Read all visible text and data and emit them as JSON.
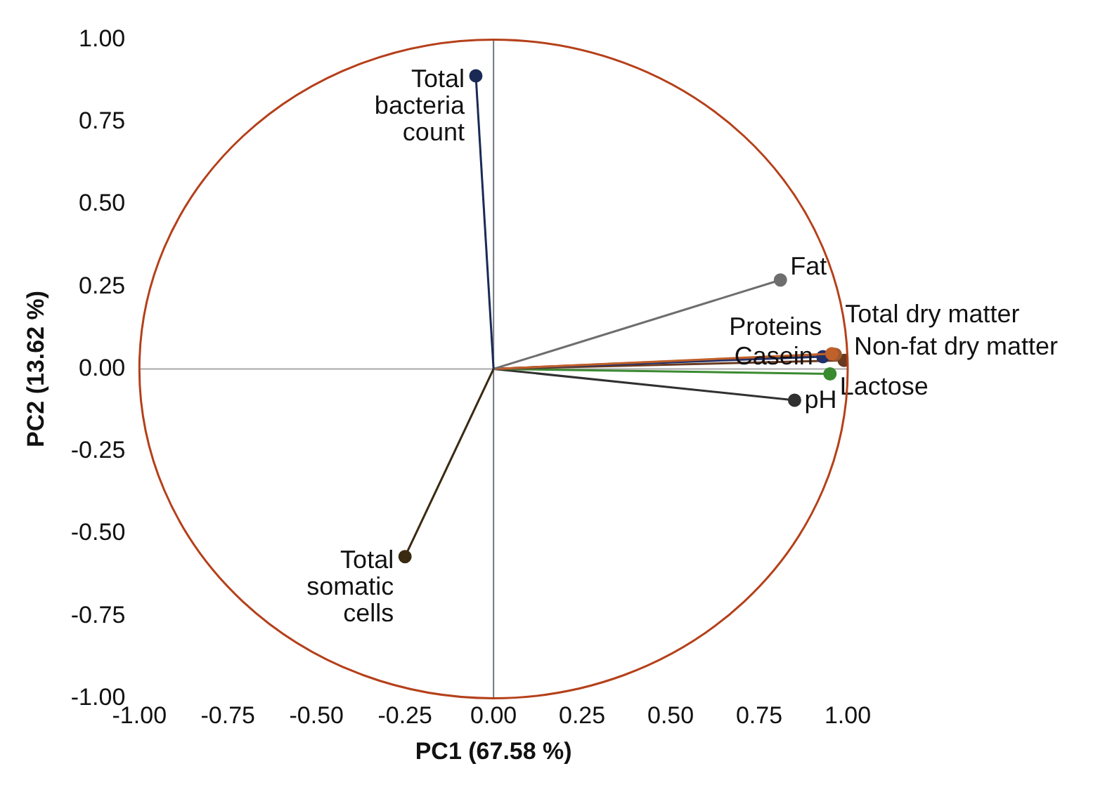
{
  "chart_data": {
    "type": "line",
    "xlabel": "PC1 (67.58 %)",
    "ylabel": "PC2 (13.62 %)",
    "xlim": [
      -1,
      1
    ],
    "ylim": [
      -1,
      1
    ],
    "xticks": [
      {
        "value": -1,
        "label": "-1.00"
      },
      {
        "value": -0.75,
        "label": "-0.75"
      },
      {
        "value": -0.5,
        "label": "-0.50"
      },
      {
        "value": -0.25,
        "label": "-0.25"
      },
      {
        "value": 0,
        "label": "0.00"
      },
      {
        "value": 0.25,
        "label": "0.25"
      },
      {
        "value": 0.5,
        "label": "0.50"
      },
      {
        "value": 0.75,
        "label": "0.75"
      },
      {
        "value": 1,
        "label": "1.00"
      }
    ],
    "yticks": [
      {
        "value": -1,
        "label": "-1.00"
      },
      {
        "value": -0.75,
        "label": "-0.75"
      },
      {
        "value": -0.5,
        "label": "-0.50"
      },
      {
        "value": -0.25,
        "label": "-0.25"
      },
      {
        "value": 0,
        "label": "0.00"
      },
      {
        "value": 0.25,
        "label": "0.25"
      },
      {
        "value": 0.5,
        "label": "0.50"
      },
      {
        "value": 0.75,
        "label": "0.75"
      },
      {
        "value": 1,
        "label": "1.00"
      }
    ],
    "grid": false,
    "legend": false,
    "marker": "circle",
    "ref_lines": [
      {
        "axis": "x",
        "value": 0,
        "color": "#6f7780"
      },
      {
        "axis": "y",
        "value": 0,
        "color": "#a8a8a8"
      }
    ],
    "series": [
      {
        "name": "Total bacteria count",
        "color": "#1a2a55",
        "x": [
          0,
          -0.05
        ],
        "values": [
          0,
          0.89
        ]
      },
      {
        "name": "Total somatic cells",
        "color": "#3a2a12",
        "x": [
          0,
          -0.25
        ],
        "values": [
          0,
          -0.57
        ]
      },
      {
        "name": "Fat",
        "color": "#6e6e6e",
        "x": [
          0,
          0.81
        ],
        "values": [
          0,
          0.27
        ]
      },
      {
        "name": "Proteins",
        "color": "#c0602a",
        "x": [
          0,
          0.955
        ],
        "values": [
          0,
          0.046
        ]
      },
      {
        "name": "Casein",
        "color": "#22306a",
        "x": [
          0,
          0.93
        ],
        "values": [
          0,
          0.037
        ]
      },
      {
        "name": "Total dry matter",
        "color": "#a05a2c",
        "x": [
          0,
          0.965
        ],
        "values": [
          0,
          0.044
        ]
      },
      {
        "name": "Non-fat dry matter",
        "color": "#6a3a20",
        "x": [
          0,
          0.99
        ],
        "values": [
          0,
          0.026
        ]
      },
      {
        "name": "Lactose",
        "color": "#3a8a30",
        "x": [
          0,
          0.95
        ],
        "values": [
          0,
          -0.015
        ]
      },
      {
        "name": "pH",
        "color": "#303030",
        "x": [
          0,
          0.85
        ],
        "values": [
          0,
          -0.095
        ]
      }
    ]
  }
}
